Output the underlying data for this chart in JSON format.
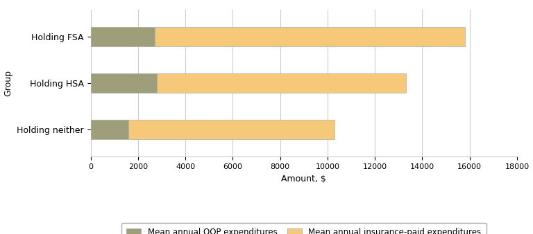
{
  "categories": [
    "Holding neither",
    "Holding HSA",
    "Holding FSA"
  ],
  "oop_values": [
    1600,
    2800,
    2700
  ],
  "insurance_values": [
    8700,
    10500,
    13100
  ],
  "oop_color": "#9e9e7a",
  "insurance_color": "#f5c87a",
  "xlabel": "Amount, $",
  "ylabel": "Group",
  "xlim": [
    0,
    18000
  ],
  "xticks": [
    0,
    2000,
    4000,
    6000,
    8000,
    10000,
    12000,
    14000,
    16000,
    18000
  ],
  "legend_oop": "Mean annual OOP expenditures",
  "legend_insurance": "Mean annual insurance-paid expenditures",
  "bar_height": 0.42,
  "grid_color": "#cccccc",
  "background_color": "#ffffff",
  "bar_edge_color": "#aaaaaa"
}
